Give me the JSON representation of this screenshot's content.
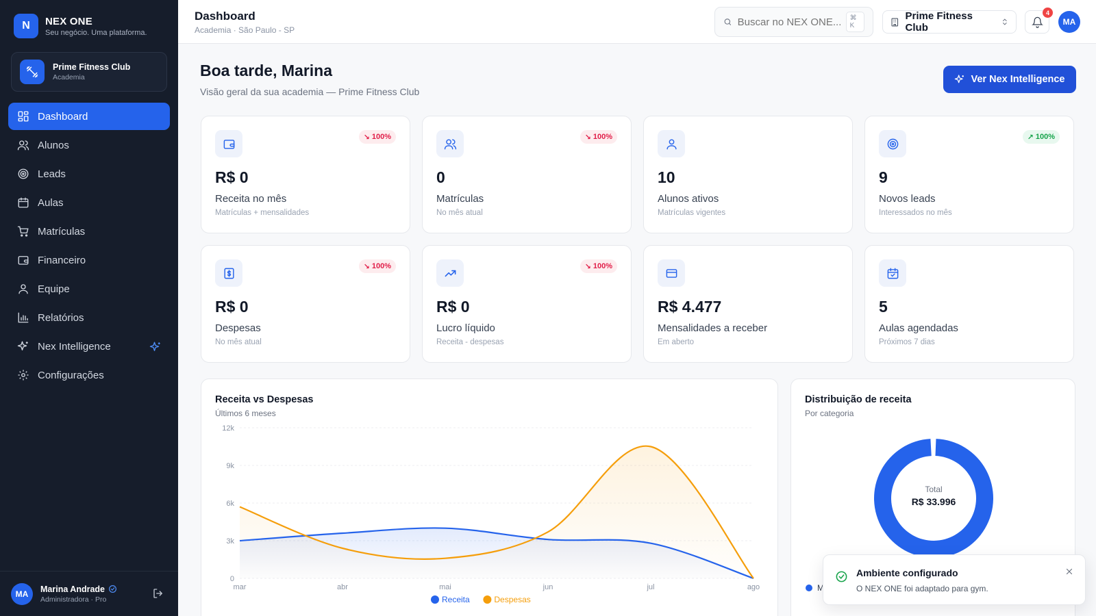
{
  "brand": {
    "logo_letter": "N",
    "name": "NEX ONE",
    "tagline": "Seu negócio. Uma plataforma."
  },
  "org": {
    "name": "Prime Fitness Club",
    "type": "Academia"
  },
  "nav": [
    {
      "label": "Dashboard",
      "icon": "dashboard-icon",
      "active": true
    },
    {
      "label": "Alunos",
      "icon": "users-icon"
    },
    {
      "label": "Leads",
      "icon": "target-icon"
    },
    {
      "label": "Aulas",
      "icon": "calendar-icon"
    },
    {
      "label": "Matrículas",
      "icon": "cart-icon"
    },
    {
      "label": "Financeiro",
      "icon": "wallet-icon"
    },
    {
      "label": "Equipe",
      "icon": "team-icon"
    },
    {
      "label": "Relatórios",
      "icon": "bar-chart-icon"
    },
    {
      "label": "Nex Intelligence",
      "icon": "sparkles-icon"
    },
    {
      "label": "Configurações",
      "icon": "gear-icon"
    }
  ],
  "user": {
    "initials": "MA",
    "name": "Marina Andrade",
    "role": "Administradora · Pro"
  },
  "header": {
    "title": "Dashboard",
    "subtitle": "Academia · São Paulo - SP",
    "search_placeholder": "Buscar no NEX ONE...",
    "search_shortcut": "⌘ K",
    "org_select": "Prime Fitness Club",
    "notifications_count": "4",
    "avatar_initials": "MA"
  },
  "greeting": {
    "title": "Boa tarde, Marina",
    "subtitle": "Visão geral da sua academia — Prime Fitness Club",
    "cta": "Ver Nex Intelligence"
  },
  "kpis": [
    {
      "icon": "wallet-icon",
      "trend": "down",
      "change": "100%",
      "value": "R$ 0",
      "label": "Receita no mês",
      "sub": "Matrículas + mensalidades"
    },
    {
      "icon": "users-icon",
      "trend": "down",
      "change": "100%",
      "value": "0",
      "label": "Matrículas",
      "sub": "No mês atual"
    },
    {
      "icon": "user-icon",
      "trend": "",
      "change": "",
      "value": "10",
      "label": "Alunos ativos",
      "sub": "Matrículas vigentes"
    },
    {
      "icon": "target-icon",
      "trend": "up",
      "change": "100%",
      "value": "9",
      "label": "Novos leads",
      "sub": "Interessados no mês"
    },
    {
      "icon": "receipt-icon",
      "trend": "down",
      "change": "100%",
      "value": "R$ 0",
      "label": "Despesas",
      "sub": "No mês atual"
    },
    {
      "icon": "trending-up-icon",
      "trend": "down",
      "change": "100%",
      "value": "R$ 0",
      "label": "Lucro líquido",
      "sub": "Receita - despesas"
    },
    {
      "icon": "credit-card-icon",
      "trend": "",
      "change": "",
      "value": "R$ 4.477",
      "label": "Mensalidades a receber",
      "sub": "Em aberto"
    },
    {
      "icon": "calendar-check-icon",
      "trend": "",
      "change": "",
      "value": "5",
      "label": "Aulas agendadas",
      "sub": "Próximos 7 dias"
    }
  ],
  "revenue_chart": {
    "title": "Receita vs Despesas",
    "subtitle": "Últimos 6 meses"
  },
  "distribution": {
    "title": "Distribuição de receita",
    "subtitle": "Por categoria",
    "center_label": "Total",
    "center_value": "R$ 33.996",
    "legend_first_letter": "M"
  },
  "toast": {
    "title": "Ambiente configurado",
    "message": "O NEX ONE foi adaptado para gym."
  },
  "colors": {
    "primary": "#2563eb",
    "sidebar": "#161d2b",
    "receita": "#2563eb",
    "despesas": "#f59e0b",
    "down": "#e11d48",
    "up": "#16a34a"
  },
  "chart_data": [
    {
      "type": "area",
      "title": "Receita vs Despesas",
      "subtitle": "Últimos 6 meses",
      "categories": [
        "mar",
        "abr",
        "mai",
        "jun",
        "jul",
        "ago"
      ],
      "yticks": [
        "0",
        "3k",
        "6k",
        "9k",
        "12k"
      ],
      "ylim": [
        0,
        12000
      ],
      "grid": true,
      "legend": "bottom",
      "series": [
        {
          "name": "Receita",
          "color": "#2563eb",
          "values": [
            3000,
            3600,
            4000,
            3100,
            2800,
            0
          ]
        },
        {
          "name": "Despesas",
          "color": "#f59e0b",
          "values": [
            5700,
            2400,
            1600,
            3700,
            10500,
            0
          ]
        }
      ]
    },
    {
      "type": "pie",
      "title": "Distribuição de receita",
      "subtitle": "Por categoria",
      "total": "R$ 33.996",
      "slices": [
        {
          "name": "M",
          "value": 99,
          "color": "#2563eb"
        }
      ]
    }
  ]
}
